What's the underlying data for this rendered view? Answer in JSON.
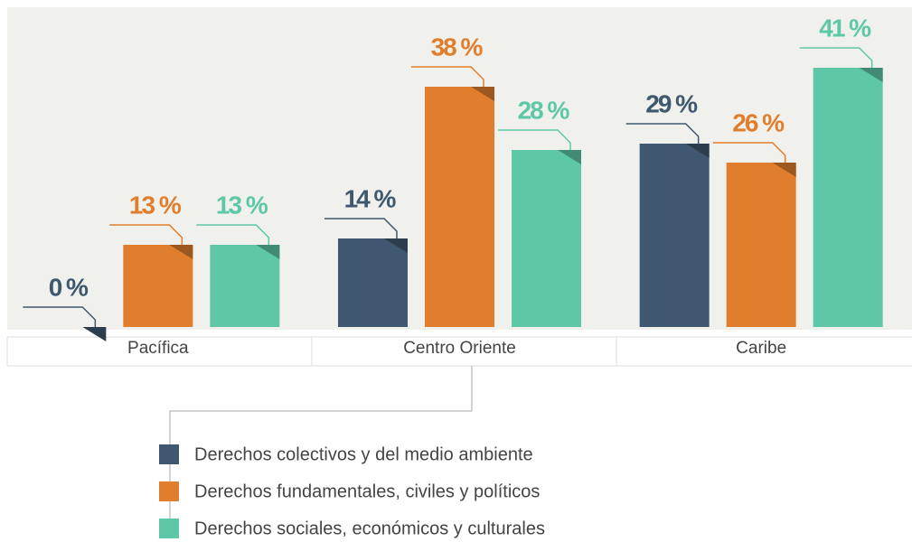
{
  "chart_data": {
    "type": "bar",
    "categories": [
      "Pacífica",
      "Centro Oriente",
      "Caribe"
    ],
    "series": [
      {
        "name": "Derechos colectivos y del medio ambiente",
        "color": "#3f586f",
        "values": [
          0,
          14,
          29
        ],
        "value_labels": [
          "0 %",
          "14 %",
          "29 %"
        ]
      },
      {
        "name": "Derechos fundamentales, civiles y políticos",
        "color": "#e07e2d",
        "values": [
          13,
          38,
          26
        ],
        "value_labels": [
          "13 %",
          "38 %",
          "26 %"
        ]
      },
      {
        "name": "Derechos sociales, económicos y culturales",
        "color": "#5dc7a8",
        "values": [
          13,
          28,
          41
        ],
        "value_labels": [
          "13 %",
          "28 %",
          "41 %"
        ]
      }
    ],
    "ylim": [
      0,
      50
    ]
  }
}
